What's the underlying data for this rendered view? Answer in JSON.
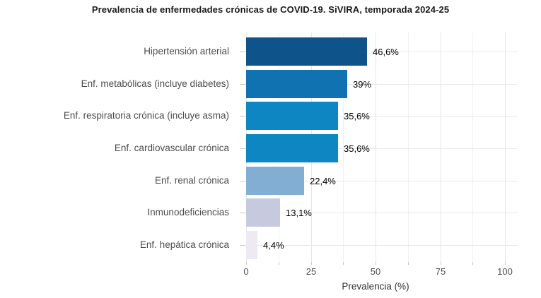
{
  "chart_data": {
    "type": "bar",
    "orientation": "horizontal",
    "title": "Prevalencia de enfermedades crónicas de COVID-19. SiVIRA, temporada 2024-25",
    "xlabel": "Prevalencia (%)",
    "ylabel": "",
    "xlim": [
      0,
      105
    ],
    "grid": "on",
    "legend": "none",
    "categories": [
      "Hipertensión arterial",
      "Enf. metabólicas (incluye diabetes)",
      "Enf. respiratoria crónica (incluye asma)",
      "Enf. cardiovascular crónica",
      "Enf. renal crónica",
      "Inmunodeficiencias",
      "Enf. hepática crónica"
    ],
    "values": [
      46.6,
      39,
      35.6,
      35.6,
      22.4,
      13.1,
      4.4
    ],
    "value_labels": [
      "46,6%",
      "39%",
      "35,6%",
      "35,6%",
      "22,4%",
      "13,1%",
      "4,4%"
    ],
    "bar_colors": [
      "#0e538a",
      "#1172b2",
      "#0e86c1",
      "#0e86c1",
      "#83aed3",
      "#c7cade",
      "#eeeaf4"
    ],
    "x_major_ticks": [
      0,
      25,
      50,
      75,
      100
    ],
    "x_minor_ticks": [
      12.5,
      37.5,
      62.5,
      87.5
    ],
    "colors": {
      "background": "#ffffff",
      "grid_major": "#e6e6e6",
      "grid_minor": "#f1f1f1",
      "axis_text": "#4d4d4d",
      "value_text": "#000000",
      "title_text": "#1a1a1a",
      "tick_mark": "#c9c9c9"
    }
  }
}
